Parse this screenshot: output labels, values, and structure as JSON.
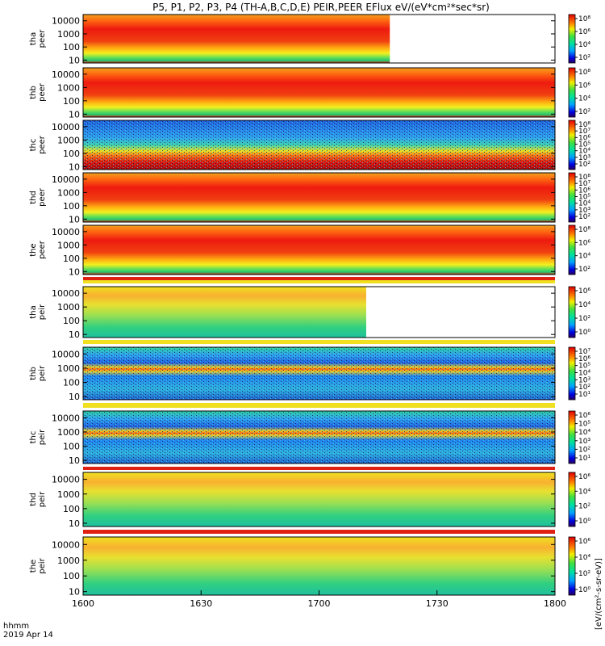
{
  "chart_data": {
    "type": "heatmap",
    "title": "P5, P1, P2, P3, P4 (TH-A,B,C,D,E) PEIR,PEER EFlux eV/(eV*cm²*sec*sr)",
    "x_axis": {
      "tick_labels": [
        "1600",
        "1630",
        "1700",
        "1730",
        "1800"
      ],
      "corner_label": "hhmm",
      "date_label": "2019 Apr 14"
    },
    "y_axis_scale": "log",
    "colorbar_label": "[eV/(cm²-s-sr-eV)]",
    "colorbar_label_top": "eV/(eV*cm²*sec*sr)",
    "panels": [
      {
        "probe": "tha",
        "species": "peer",
        "ylabel": [
          "tha",
          "peer"
        ],
        "yticks": [
          "10000",
          "1000",
          "100",
          "10"
        ],
        "ylim": [
          6,
          30000
        ],
        "data_end_fraction": 0.65,
        "cb_ticks": [
          "10⁸",
          "10⁶",
          "10⁴",
          "10²"
        ]
      },
      {
        "probe": "thb",
        "species": "peer",
        "ylabel": [
          "thb",
          "peer"
        ],
        "yticks": [
          "10000",
          "1000",
          "100",
          "10"
        ],
        "ylim": [
          6,
          30000
        ],
        "data_end_fraction": 1.0,
        "cb_ticks": [
          "10⁸",
          "10⁶",
          "10⁴",
          "10²"
        ]
      },
      {
        "probe": "thc",
        "species": "peer",
        "ylabel": [
          "thc",
          "peer"
        ],
        "yticks": [
          "10000",
          "1000",
          "100",
          "10"
        ],
        "ylim": [
          6,
          30000
        ],
        "data_end_fraction": 1.0,
        "cb_ticks": [
          "10⁸",
          "10⁷",
          "10⁶",
          "10⁵",
          "10⁴",
          "10³",
          "10²"
        ]
      },
      {
        "probe": "thd",
        "species": "peer",
        "ylabel": [
          "thd",
          "peer"
        ],
        "yticks": [
          "10000",
          "1000",
          "100",
          "10"
        ],
        "ylim": [
          6,
          30000
        ],
        "data_end_fraction": 1.0,
        "cb_ticks": [
          "10⁸",
          "10⁷",
          "10⁶",
          "10⁵",
          "10⁴",
          "10³",
          "10²"
        ]
      },
      {
        "probe": "the",
        "species": "peer",
        "ylabel": [
          "the",
          "peer"
        ],
        "yticks": [
          "10000",
          "1000",
          "100",
          "10"
        ],
        "ylim": [
          6,
          30000
        ],
        "data_end_fraction": 1.0,
        "cb_ticks": [
          "10⁸",
          "10⁶",
          "10⁴",
          "10²"
        ]
      },
      {
        "probe": "tha",
        "species": "peir",
        "ylabel": [
          "tha",
          "peir"
        ],
        "yticks": [
          "10000",
          "1000",
          "100",
          "10"
        ],
        "ylim": [
          6,
          30000
        ],
        "data_end_fraction": 0.6,
        "cb_ticks": [
          "10⁶",
          "10⁴",
          "10²",
          "10⁰"
        ]
      },
      {
        "probe": "thb",
        "species": "peir",
        "ylabel": [
          "thb",
          "peir"
        ],
        "yticks": [
          "10000",
          "1000",
          "100",
          "10"
        ],
        "ylim": [
          6,
          30000
        ],
        "data_end_fraction": 1.0,
        "cb_ticks": [
          "10⁷",
          "10⁶",
          "10⁵",
          "10⁴",
          "10³",
          "10²",
          "10¹"
        ]
      },
      {
        "probe": "thc",
        "species": "peir",
        "ylabel": [
          "thc",
          "peir"
        ],
        "yticks": [
          "10000",
          "1000",
          "100",
          "10"
        ],
        "ylim": [
          6,
          30000
        ],
        "data_end_fraction": 1.0,
        "cb_ticks": [
          "10⁶",
          "10⁵",
          "10⁴",
          "10³",
          "10²",
          "10¹"
        ]
      },
      {
        "probe": "thd",
        "species": "peir",
        "ylabel": [
          "thd",
          "peir"
        ],
        "yticks": [
          "10000",
          "1000",
          "100",
          "10"
        ],
        "ylim": [
          6,
          30000
        ],
        "data_end_fraction": 1.0,
        "cb_ticks": [
          "10⁶",
          "10⁴",
          "10²",
          "10⁰"
        ]
      },
      {
        "probe": "the",
        "species": "peir",
        "ylabel": [
          "the",
          "peir"
        ],
        "yticks": [
          "10000",
          "1000",
          "100",
          "10"
        ],
        "ylim": [
          6,
          30000
        ],
        "data_end_fraction": 1.0,
        "cb_ticks": [
          "10⁶",
          "10⁴",
          "10²",
          "10⁰"
        ]
      }
    ]
  }
}
